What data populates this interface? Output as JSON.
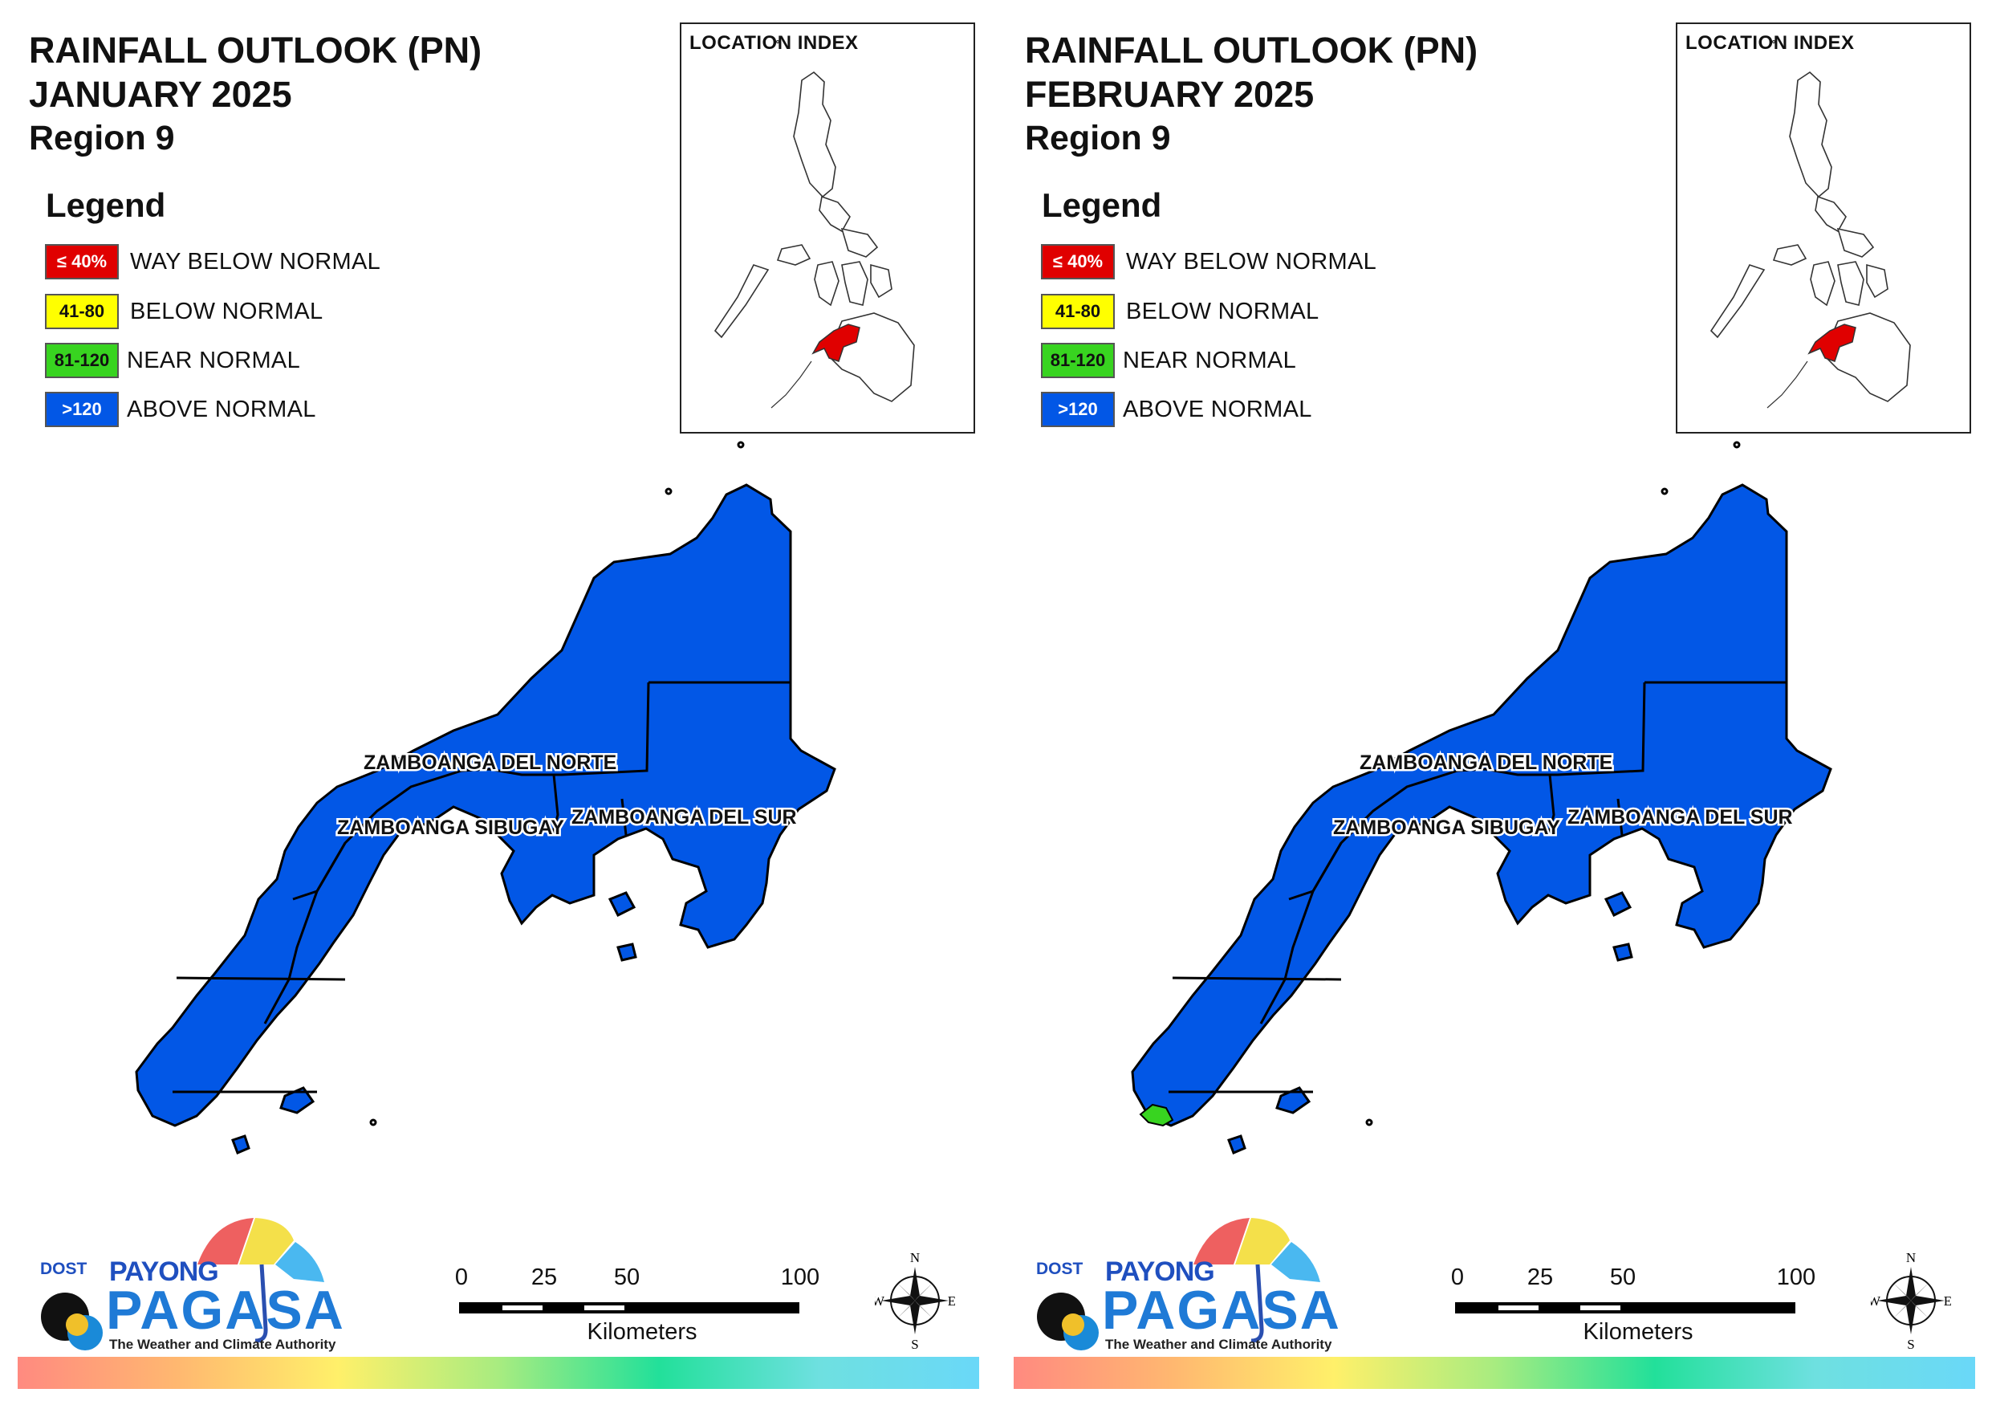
{
  "colors": {
    "way_below_normal": "#e00000",
    "below_normal": "#ffff00",
    "near_normal": "#38d420",
    "above_normal": "#0257e6"
  },
  "panels": [
    {
      "title_line1": "RAINFALL OUTLOOK (PN)",
      "title_line2": "JANUARY 2025",
      "title_line3": "Region 9",
      "legend_title": "Legend",
      "legend": [
        {
          "range": "≤ 40%",
          "label": "WAY BELOW NORMAL"
        },
        {
          "range": "41-80",
          "label": "BELOW NORMAL"
        },
        {
          "range": "81-120",
          "label": "NEAR NORMAL"
        },
        {
          "range": ">120",
          "label": "ABOVE NORMAL"
        }
      ],
      "inset_label": "LOCATION INDEX",
      "provinces": [
        {
          "name": "ZAMBOANGA DEL NORTE",
          "category": "ABOVE NORMAL"
        },
        {
          "name": "ZAMBOANGA SIBUGAY",
          "category": "ABOVE NORMAL"
        },
        {
          "name": "ZAMBOANGA DEL SUR",
          "category": "ABOVE NORMAL"
        }
      ],
      "scale_ticks": [
        "0",
        "25",
        "50",
        "100"
      ],
      "scale_unit": "Kilometers",
      "compass": {
        "n": "N",
        "s": "S",
        "e": "E",
        "w": "W"
      },
      "logo": {
        "dost": "DOST",
        "payong": "PAYONG",
        "pagasa": "PAGASA",
        "tagline": "The Weather and Climate Authority"
      }
    },
    {
      "title_line1": "RAINFALL OUTLOOK (PN)",
      "title_line2": "FEBRUARY 2025",
      "title_line3": "Region 9",
      "legend_title": "Legend",
      "legend": [
        {
          "range": "≤ 40%",
          "label": "WAY BELOW NORMAL"
        },
        {
          "range": "41-80",
          "label": "BELOW NORMAL"
        },
        {
          "range": "81-120",
          "label": "NEAR NORMAL"
        },
        {
          "range": ">120",
          "label": "ABOVE NORMAL"
        }
      ],
      "inset_label": "LOCATION INDEX",
      "provinces": [
        {
          "name": "ZAMBOANGA DEL NORTE",
          "category": "ABOVE NORMAL"
        },
        {
          "name": "ZAMBOANGA SIBUGAY",
          "category": "ABOVE NORMAL"
        },
        {
          "name": "ZAMBOANGA DEL SUR",
          "category": "ABOVE NORMAL"
        }
      ],
      "near_normal_patch": "southern tip",
      "scale_ticks": [
        "0",
        "25",
        "50",
        "100"
      ],
      "scale_unit": "Kilometers",
      "compass": {
        "n": "N",
        "s": "S",
        "e": "E",
        "w": "W"
      },
      "logo": {
        "dost": "DOST",
        "payong": "PAYONG",
        "pagasa": "PAGASA",
        "tagline": "The Weather and Climate Authority"
      }
    }
  ]
}
